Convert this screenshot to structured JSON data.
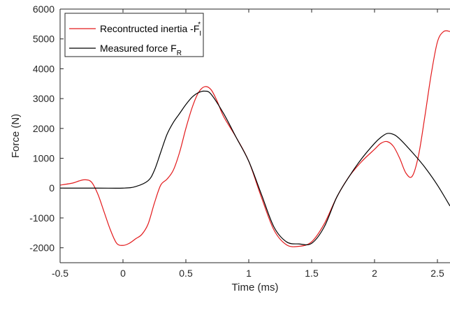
{
  "chart_data": {
    "type": "line",
    "xlabel": "Time (ms)",
    "ylabel": "Force (N)",
    "xlim": [
      -0.5,
      2.6
    ],
    "ylim": [
      -2500,
      6000
    ],
    "xticks": [
      -0.5,
      0,
      0.5,
      1,
      1.5,
      2,
      2.5
    ],
    "xtick_labels": [
      "-0.5",
      "0",
      "0.5",
      "1",
      "1.5",
      "2",
      "2.5"
    ],
    "yticks": [
      -2000,
      -1000,
      0,
      1000,
      2000,
      3000,
      4000,
      5000,
      6000
    ],
    "ytick_labels": [
      "-2000",
      "-1000",
      "0",
      "1000",
      "2000",
      "3000",
      "4000",
      "5000",
      "6000"
    ],
    "grid": false,
    "legend_position": "top-left",
    "series": [
      {
        "name": "Recontructed inertia -F",
        "name_sup": "*",
        "name_sub": "I",
        "color": "#e31a1c",
        "x": [
          -0.5,
          -0.4,
          -0.35,
          -0.3,
          -0.25,
          -0.2,
          -0.15,
          -0.1,
          -0.05,
          0,
          0.05,
          0.1,
          0.15,
          0.2,
          0.25,
          0.3,
          0.35,
          0.4,
          0.45,
          0.5,
          0.55,
          0.6,
          0.65,
          0.7,
          0.75,
          0.8,
          0.9,
          1.0,
          1.1,
          1.2,
          1.3,
          1.4,
          1.5,
          1.6,
          1.7,
          1.8,
          1.9,
          2.0,
          2.05,
          2.1,
          2.15,
          2.2,
          2.25,
          2.3,
          2.35,
          2.4,
          2.45,
          2.5,
          2.55,
          2.6
        ],
        "y": [
          100,
          170,
          240,
          280,
          200,
          -200,
          -800,
          -1400,
          -1850,
          -1920,
          -1850,
          -1700,
          -1550,
          -1200,
          -500,
          100,
          300,
          600,
          1200,
          2000,
          2700,
          3200,
          3400,
          3300,
          2900,
          2400,
          1700,
          900,
          -300,
          -1400,
          -1900,
          -1950,
          -1800,
          -1200,
          -300,
          400,
          900,
          1300,
          1500,
          1560,
          1400,
          1000,
          500,
          400,
          1100,
          2400,
          3800,
          4900,
          5250,
          5250
        ]
      },
      {
        "name": "Measured force F",
        "name_sub": "R",
        "color": "#000000",
        "x": [
          -0.5,
          -0.2,
          0,
          0.1,
          0.2,
          0.25,
          0.3,
          0.35,
          0.4,
          0.45,
          0.5,
          0.55,
          0.6,
          0.65,
          0.7,
          0.8,
          0.9,
          1.0,
          1.1,
          1.2,
          1.3,
          1.4,
          1.5,
          1.6,
          1.7,
          1.8,
          1.9,
          2.0,
          2.05,
          2.1,
          2.15,
          2.2,
          2.3,
          2.4,
          2.5,
          2.6
        ],
        "y": [
          0,
          0,
          0,
          50,
          250,
          600,
          1200,
          1800,
          2200,
          2500,
          2800,
          3050,
          3200,
          3250,
          3150,
          2500,
          1700,
          900,
          -200,
          -1300,
          -1800,
          -1870,
          -1850,
          -1300,
          -300,
          400,
          1000,
          1500,
          1700,
          1830,
          1800,
          1650,
          1200,
          700,
          100,
          -600
        ]
      }
    ]
  }
}
